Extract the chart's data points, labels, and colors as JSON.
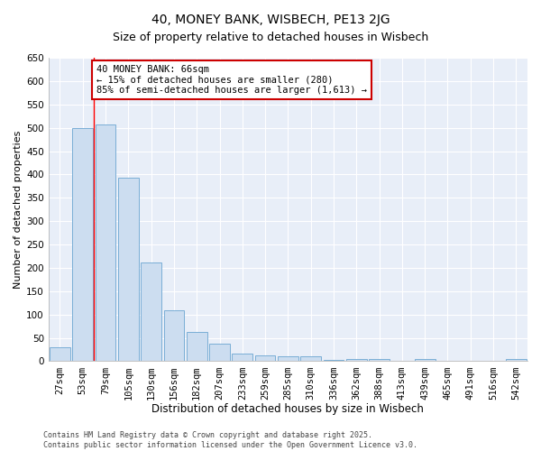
{
  "title": "40, MONEY BANK, WISBECH, PE13 2JG",
  "subtitle": "Size of property relative to detached houses in Wisbech",
  "xlabel": "Distribution of detached houses by size in Wisbech",
  "ylabel": "Number of detached properties",
  "categories": [
    "27sqm",
    "53sqm",
    "79sqm",
    "105sqm",
    "130sqm",
    "156sqm",
    "182sqm",
    "207sqm",
    "233sqm",
    "259sqm",
    "285sqm",
    "310sqm",
    "336sqm",
    "362sqm",
    "388sqm",
    "413sqm",
    "439sqm",
    "465sqm",
    "491sqm",
    "516sqm",
    "542sqm"
  ],
  "values": [
    30,
    500,
    507,
    393,
    212,
    110,
    63,
    38,
    16,
    13,
    10,
    10,
    3,
    5,
    5,
    1,
    4,
    1,
    1,
    1,
    4
  ],
  "bar_color": "#ccddf0",
  "bar_edge_color": "#7aaed6",
  "ylim": [
    0,
    650
  ],
  "yticks": [
    0,
    50,
    100,
    150,
    200,
    250,
    300,
    350,
    400,
    450,
    500,
    550,
    600,
    650
  ],
  "redline_x": 1.5,
  "annotation_text": "40 MONEY BANK: 66sqm\n← 15% of detached houses are smaller (280)\n85% of semi-detached houses are larger (1,613) →",
  "annotation_box_facecolor": "#ffffff",
  "annotation_box_edgecolor": "#cc0000",
  "footer_text": "Contains HM Land Registry data © Crown copyright and database right 2025.\nContains public sector information licensed under the Open Government Licence v3.0.",
  "fig_background_color": "#ffffff",
  "plot_background": "#e8eef8",
  "title_fontsize": 10,
  "xlabel_fontsize": 8.5,
  "ylabel_fontsize": 8,
  "tick_fontsize": 7.5,
  "annotation_fontsize": 7.5,
  "footer_fontsize": 6
}
